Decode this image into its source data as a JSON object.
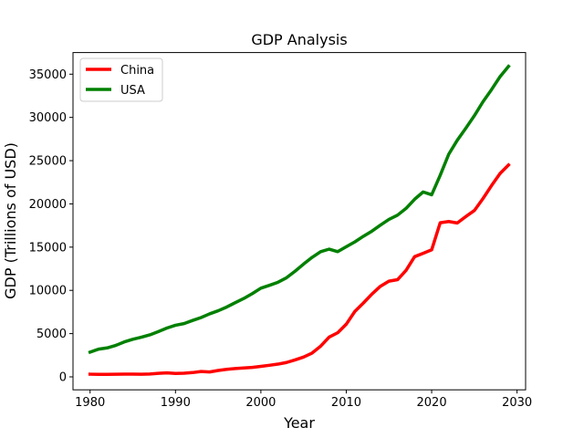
{
  "chart_data": {
    "type": "line",
    "title": "GDP Analysis",
    "xlabel": "Year",
    "ylabel": "GDP (Trillions of USD)",
    "xlim": [
      1978,
      2031
    ],
    "ylim": [
      -1500,
      37500
    ],
    "xticks": [
      1980,
      1990,
      2000,
      2010,
      2020,
      2030
    ],
    "yticks": [
      0,
      5000,
      10000,
      15000,
      20000,
      25000,
      30000,
      35000
    ],
    "legend_position": "upper-left",
    "grid": false,
    "x": [
      1980,
      1981,
      1982,
      1983,
      1984,
      1985,
      1986,
      1987,
      1988,
      1989,
      1990,
      1991,
      1992,
      1993,
      1994,
      1995,
      1996,
      1997,
      1998,
      1999,
      2000,
      2001,
      2002,
      2003,
      2004,
      2005,
      2006,
      2007,
      2008,
      2009,
      2010,
      2011,
      2012,
      2013,
      2014,
      2015,
      2016,
      2017,
      2018,
      2019,
      2020,
      2021,
      2022,
      2023,
      2024,
      2025,
      2026,
      2027,
      2028,
      2029
    ],
    "series": [
      {
        "name": "China",
        "color": "#ff0000",
        "values": [
          306,
          289,
          284,
          306,
          313,
          311,
          304,
          330,
          412,
          461,
          398,
          415,
          494,
          617,
          564,
          735,
          866,
          965,
          1032,
          1097,
          1211,
          1339,
          1471,
          1660,
          1955,
          2286,
          2752,
          3550,
          4594,
          5102,
          6087,
          7552,
          8532,
          9570,
          10475,
          11061,
          11233,
          12311,
          13894,
          14280,
          14688,
          17820,
          17963,
          17795,
          18533,
          19230,
          20600,
          22100,
          23500,
          24500
        ],
        "values_note": ""
      },
      {
        "name": "USA",
        "color": "#008000",
        "values": [
          2857,
          3207,
          3344,
          3634,
          4037,
          4339,
          4580,
          4855,
          5236,
          5642,
          5963,
          6158,
          6520,
          6859,
          7287,
          7640,
          8073,
          8577,
          9063,
          9631,
          10252,
          10582,
          10936,
          11458,
          12214,
          13037,
          13815,
          14474,
          14770,
          14478,
          15049,
          15600,
          16254,
          16843,
          17551,
          18206,
          18695,
          19477,
          20533,
          21381,
          21060,
          23315,
          25744,
          27361,
          28750,
          30200,
          31800,
          33200,
          34700,
          35900
        ]
      }
    ]
  }
}
